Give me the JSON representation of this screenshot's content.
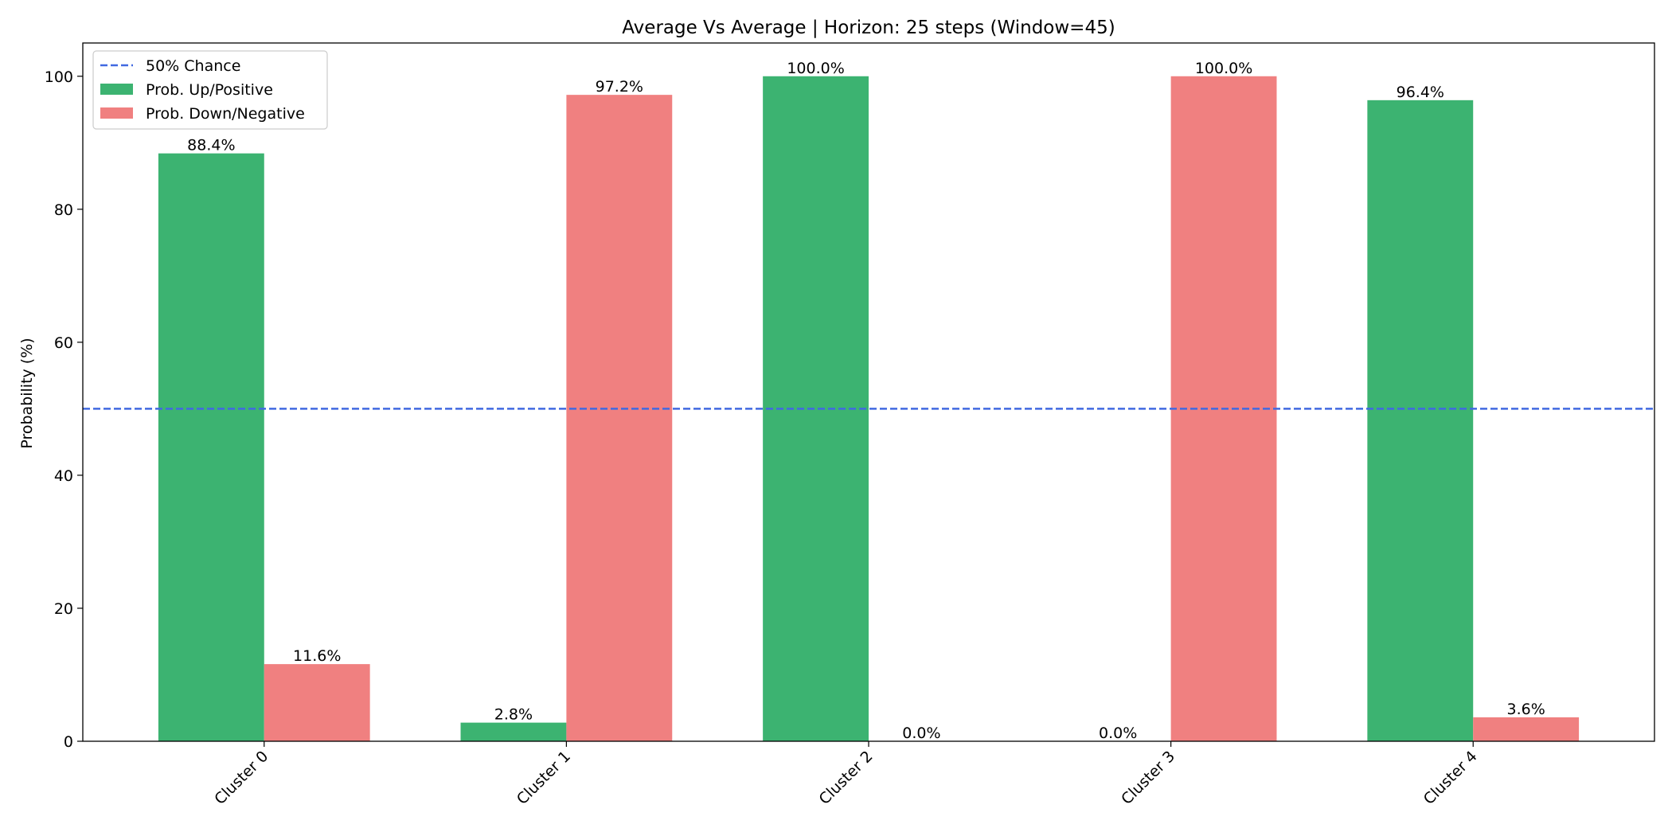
{
  "chart_data": {
    "type": "bar",
    "title": "Average Vs Average | Horizon: 25 steps (Window=45)",
    "xlabel": "",
    "ylabel": "Probability (%)",
    "ylim": [
      0,
      105
    ],
    "yticks": [
      0,
      20,
      40,
      60,
      80,
      100
    ],
    "categories": [
      "Cluster 0",
      "Cluster 1",
      "Cluster 2",
      "Cluster 3",
      "Cluster 4"
    ],
    "series": [
      {
        "name": "Prob. Up/Positive",
        "color": "#3cb371",
        "values": [
          88.4,
          2.8,
          100.0,
          0.0,
          96.4
        ],
        "labels": [
          "88.4%",
          "2.8%",
          "100.0%",
          "0.0%",
          "96.4%"
        ]
      },
      {
        "name": "Prob. Down/Negative",
        "color": "#f08080",
        "values": [
          11.6,
          97.2,
          0.0,
          100.0,
          3.6
        ],
        "labels": [
          "11.6%",
          "97.2%",
          "0.0%",
          "100.0%",
          "3.6%"
        ]
      }
    ],
    "reference_line": {
      "name": "50% Chance",
      "value": 50,
      "color": "#4169e1",
      "style": "dashed"
    },
    "legend": "top-left",
    "grid": false
  }
}
